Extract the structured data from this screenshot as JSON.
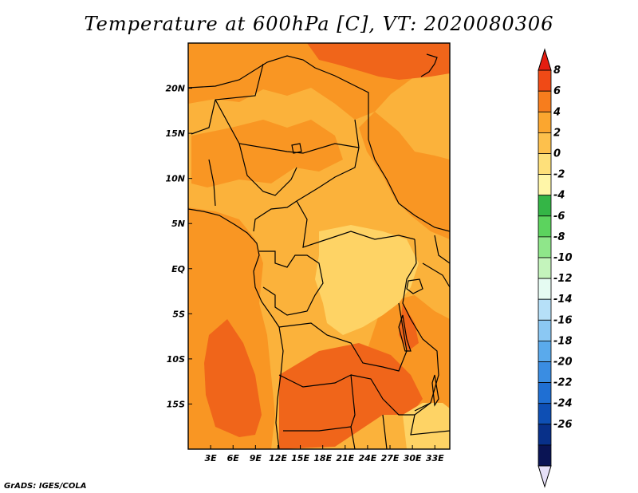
{
  "title": "Temperature at 600hPa [C], VT: 2020080306",
  "credit": "GrADS: IGES/COLA",
  "map": {
    "lon_range": [
      0,
      35
    ],
    "lat_range": [
      -20,
      25
    ],
    "lon_ticks": [
      {
        "value": 3,
        "label": "3E"
      },
      {
        "value": 6,
        "label": "6E"
      },
      {
        "value": 9,
        "label": "9E"
      },
      {
        "value": 12,
        "label": "12E"
      },
      {
        "value": 15,
        "label": "15E"
      },
      {
        "value": 18,
        "label": "18E"
      },
      {
        "value": 21,
        "label": "21E"
      },
      {
        "value": 24,
        "label": "24E"
      },
      {
        "value": 27,
        "label": "27E"
      },
      {
        "value": 30,
        "label": "30E"
      },
      {
        "value": 33,
        "label": "33E"
      }
    ],
    "lat_ticks": [
      {
        "value": 20,
        "label": "20N"
      },
      {
        "value": 15,
        "label": "15N"
      },
      {
        "value": 10,
        "label": "10N"
      },
      {
        "value": 5,
        "label": "5N"
      },
      {
        "value": 0,
        "label": "EQ"
      },
      {
        "value": -5,
        "label": "5S"
      },
      {
        "value": -10,
        "label": "10S"
      },
      {
        "value": -15,
        "label": "15S"
      }
    ],
    "colors": {
      "base": "#fbb23b",
      "orange": "#f99623",
      "dark_orange": "#f0651a",
      "light": "#fed365",
      "border": "#000000"
    }
  },
  "colorbar": {
    "labels": [
      "8",
      "6",
      "4",
      "2",
      "0",
      "-2",
      "-4",
      "-6",
      "-8",
      "-10",
      "-12",
      "-14",
      "-16",
      "-18",
      "-20",
      "-22",
      "-24",
      "-26"
    ],
    "colors": [
      "#e51d11",
      "#f04a16",
      "#f77d1d",
      "#fba62f",
      "#fdc04c",
      "#fee07a",
      "#fff6a8",
      "#34b546",
      "#5cd35e",
      "#8fe68a",
      "#c4f4bc",
      "#e5fbf2",
      "#b6e0f8",
      "#8bc8f3",
      "#5aaaec",
      "#3a8de2",
      "#1f6fd3",
      "#0e4fb4",
      "#083089",
      "#0a1454",
      "#e6e0f8"
    ]
  }
}
